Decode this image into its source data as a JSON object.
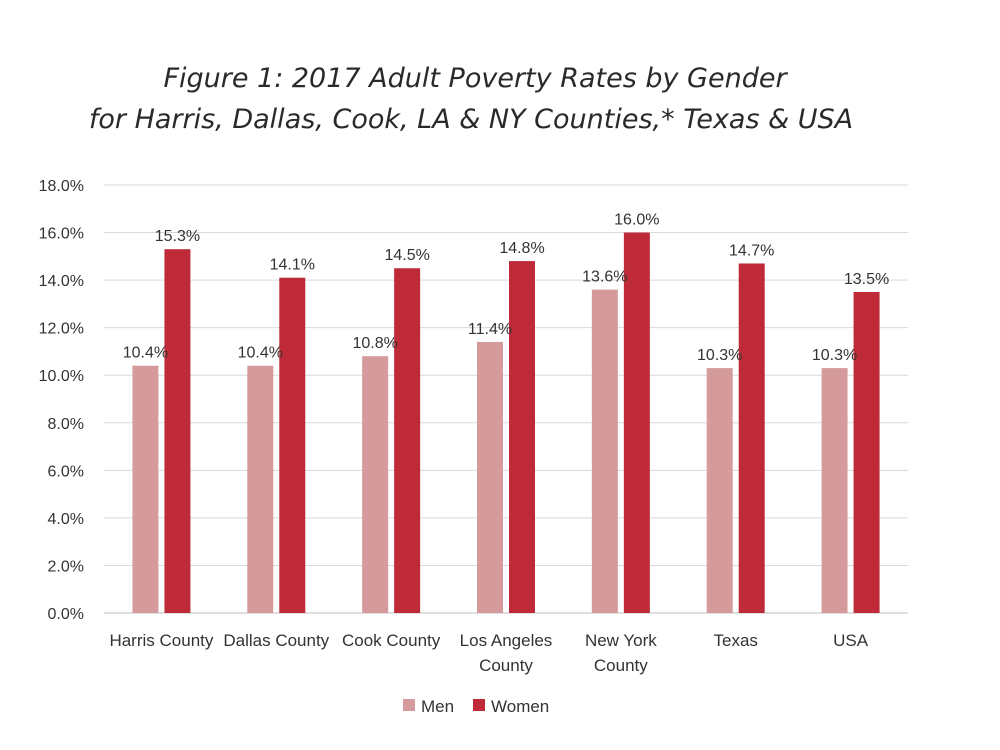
{
  "chart_data": {
    "type": "bar",
    "title_lines": [
      "Figure 1: 2017 Adult Poverty Rates by Gender",
      "for Harris, Dallas, Cook, LA & NY Counties,* Texas & USA"
    ],
    "categories": [
      "Harris County",
      "Dallas County",
      "Cook County",
      "Los Angeles County",
      "New York County",
      "Texas",
      "USA"
    ],
    "category_label_lines": [
      [
        "Harris County"
      ],
      [
        "Dallas County"
      ],
      [
        "Cook County"
      ],
      [
        "Los Angeles",
        "County"
      ],
      [
        "New York",
        "County"
      ],
      [
        "Texas"
      ],
      [
        "USA"
      ]
    ],
    "series": [
      {
        "name": "Men",
        "color": "#d59b9c",
        "values": [
          10.4,
          10.4,
          10.8,
          11.4,
          13.6,
          10.3,
          10.3
        ],
        "labels": [
          "10.4%",
          "10.4%",
          "10.8%",
          "11.4%",
          "13.6%",
          "10.3%",
          "10.3%"
        ]
      },
      {
        "name": "Women",
        "color": "#bf2a38",
        "values": [
          15.3,
          14.1,
          14.5,
          14.8,
          16.0,
          14.7,
          13.5
        ],
        "labels": [
          "15.3%",
          "14.1%",
          "14.5%",
          "14.8%",
          "16.0%",
          "14.7%",
          "13.5%"
        ]
      }
    ],
    "y_ticks": [
      0,
      2,
      4,
      6,
      8,
      10,
      12,
      14,
      16,
      18
    ],
    "y_tick_labels": [
      "0.0%",
      "2.0%",
      "4.0%",
      "6.0%",
      "8.0%",
      "10.0%",
      "12.0%",
      "14.0%",
      "16.0%",
      "18.0%"
    ],
    "ylim": [
      0,
      18
    ],
    "xlabel": "",
    "ylabel": "",
    "grid": true,
    "legend_position": "bottom"
  }
}
